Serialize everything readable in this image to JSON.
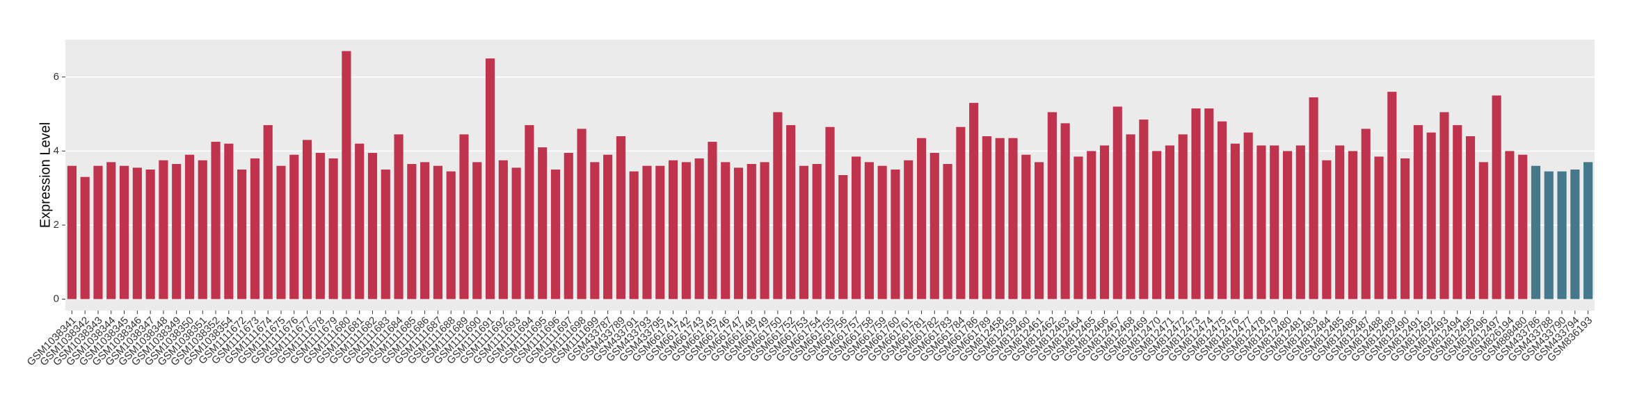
{
  "chart_data": {
    "type": "bar",
    "y_label": "Expression Level",
    "categories": [
      "GSM1038341",
      "GSM1038342",
      "GSM1038343",
      "GSM1038344",
      "GSM1038345",
      "GSM1038346",
      "GSM1038347",
      "GSM1038348",
      "GSM1038349",
      "GSM1038350",
      "GSM1038351",
      "GSM1038352",
      "GSM1038354",
      "GSM1111672",
      "GSM1111673",
      "GSM1111674",
      "GSM1111675",
      "GSM1111676",
      "GSM1111677",
      "GSM1111678",
      "GSM1111679",
      "GSM1111680",
      "GSM1111681",
      "GSM1111682",
      "GSM1111683",
      "GSM1111684",
      "GSM1111685",
      "GSM1111686",
      "GSM1111687",
      "GSM1111688",
      "GSM1111689",
      "GSM1111690",
      "GSM1111691",
      "GSM1111692",
      "GSM1111693",
      "GSM1111694",
      "GSM1111695",
      "GSM1111696",
      "GSM1111697",
      "GSM1111698",
      "GSM1111699",
      "GSM433787",
      "GSM433789",
      "GSM433791",
      "GSM433793",
      "GSM433795",
      "GSM661741",
      "GSM661742",
      "GSM661743",
      "GSM661745",
      "GSM661746",
      "GSM661747",
      "GSM661748",
      "GSM661749",
      "GSM661750",
      "GSM661752",
      "GSM661753",
      "GSM661754",
      "GSM661755",
      "GSM661756",
      "GSM661757",
      "GSM661758",
      "GSM661759",
      "GSM661760",
      "GSM661761",
      "GSM661781",
      "GSM661782",
      "GSM661783",
      "GSM661784",
      "GSM661786",
      "GSM661789",
      "GSM812458",
      "GSM812459",
      "GSM812460",
      "GSM812461",
      "GSM812462",
      "GSM812463",
      "GSM812464",
      "GSM812465",
      "GSM812466",
      "GSM812467",
      "GSM812468",
      "GSM812469",
      "GSM812470",
      "GSM812471",
      "GSM812472",
      "GSM812473",
      "GSM812474",
      "GSM812475",
      "GSM812476",
      "GSM812477",
      "GSM812478",
      "GSM812479",
      "GSM812480",
      "GSM812481",
      "GSM812483",
      "GSM812484",
      "GSM812485",
      "GSM812486",
      "GSM812487",
      "GSM812488",
      "GSM812489",
      "GSM812490",
      "GSM812491",
      "GSM812492",
      "GSM812493",
      "GSM812494",
      "GSM812495",
      "GSM812496",
      "GSM812497",
      "GSM826194",
      "GSM888480",
      "GSM433786",
      "GSM433788",
      "GSM433790",
      "GSM433794",
      "GSM836193"
    ],
    "values": [
      3.6,
      3.3,
      3.6,
      3.7,
      3.6,
      3.55,
      3.5,
      3.75,
      3.65,
      3.9,
      3.75,
      4.25,
      4.2,
      3.5,
      3.8,
      4.7,
      3.6,
      3.9,
      4.3,
      3.95,
      3.8,
      6.7,
      4.2,
      3.95,
      3.5,
      4.45,
      3.65,
      3.7,
      3.6,
      3.45,
      4.45,
      3.7,
      6.5,
      3.75,
      3.55,
      4.7,
      4.1,
      3.5,
      3.95,
      4.6,
      3.7,
      3.9,
      4.4,
      3.45,
      3.6,
      3.6,
      3.75,
      3.7,
      3.8,
      4.25,
      3.7,
      3.55,
      3.65,
      3.7,
      5.05,
      4.7,
      3.6,
      3.65,
      4.65,
      3.35,
      3.85,
      3.7,
      3.6,
      3.5,
      3.75,
      4.35,
      3.95,
      3.65,
      4.65,
      5.3,
      4.4,
      4.35,
      4.35,
      3.9,
      3.7,
      5.05,
      4.75,
      3.85,
      4.0,
      4.15,
      5.2,
      4.45,
      4.85,
      4.0,
      4.15,
      4.45,
      5.15,
      5.15,
      4.8,
      4.2,
      4.5,
      4.15,
      4.15,
      4.0,
      4.15,
      5.45,
      3.75,
      4.15,
      4.0,
      4.6,
      3.85,
      5.6,
      3.8,
      4.7,
      4.5,
      5.05,
      4.7,
      4.4,
      3.7,
      5.5,
      4.0,
      3.9,
      3.6,
      3.45,
      3.45,
      3.5,
      3.7
    ],
    "colors": [
      "#c0334d",
      "#c0334d",
      "#c0334d",
      "#c0334d",
      "#c0334d",
      "#c0334d",
      "#c0334d",
      "#c0334d",
      "#c0334d",
      "#c0334d",
      "#c0334d",
      "#c0334d",
      "#c0334d",
      "#c0334d",
      "#c0334d",
      "#c0334d",
      "#c0334d",
      "#c0334d",
      "#c0334d",
      "#c0334d",
      "#c0334d",
      "#c0334d",
      "#c0334d",
      "#c0334d",
      "#c0334d",
      "#c0334d",
      "#c0334d",
      "#c0334d",
      "#c0334d",
      "#c0334d",
      "#c0334d",
      "#c0334d",
      "#c0334d",
      "#c0334d",
      "#c0334d",
      "#c0334d",
      "#c0334d",
      "#c0334d",
      "#c0334d",
      "#c0334d",
      "#c0334d",
      "#c0334d",
      "#c0334d",
      "#c0334d",
      "#c0334d",
      "#c0334d",
      "#c0334d",
      "#c0334d",
      "#c0334d",
      "#c0334d",
      "#c0334d",
      "#c0334d",
      "#c0334d",
      "#c0334d",
      "#c0334d",
      "#c0334d",
      "#c0334d",
      "#c0334d",
      "#c0334d",
      "#c0334d",
      "#c0334d",
      "#c0334d",
      "#c0334d",
      "#c0334d",
      "#c0334d",
      "#c0334d",
      "#c0334d",
      "#c0334d",
      "#c0334d",
      "#c0334d",
      "#c0334d",
      "#c0334d",
      "#c0334d",
      "#c0334d",
      "#c0334d",
      "#c0334d",
      "#c0334d",
      "#c0334d",
      "#c0334d",
      "#c0334d",
      "#c0334d",
      "#c0334d",
      "#c0334d",
      "#c0334d",
      "#c0334d",
      "#c0334d",
      "#c0334d",
      "#c0334d",
      "#c0334d",
      "#c0334d",
      "#c0334d",
      "#c0334d",
      "#c0334d",
      "#c0334d",
      "#c0334d",
      "#c0334d",
      "#c0334d",
      "#c0334d",
      "#c0334d",
      "#c0334d",
      "#c0334d",
      "#c0334d",
      "#c0334d",
      "#c0334d",
      "#c0334d",
      "#c0334d",
      "#c0334d",
      "#c0334d",
      "#c0334d",
      "#c0334d",
      "#c0334d",
      "#c0334d",
      "#44788a",
      "#44788a",
      "#44788a",
      "#44788a",
      "#44788a"
    ],
    "ylim": [
      -0.31,
      7.01
    ],
    "yticks": [
      0,
      2,
      4,
      6
    ],
    "grid": true
  }
}
